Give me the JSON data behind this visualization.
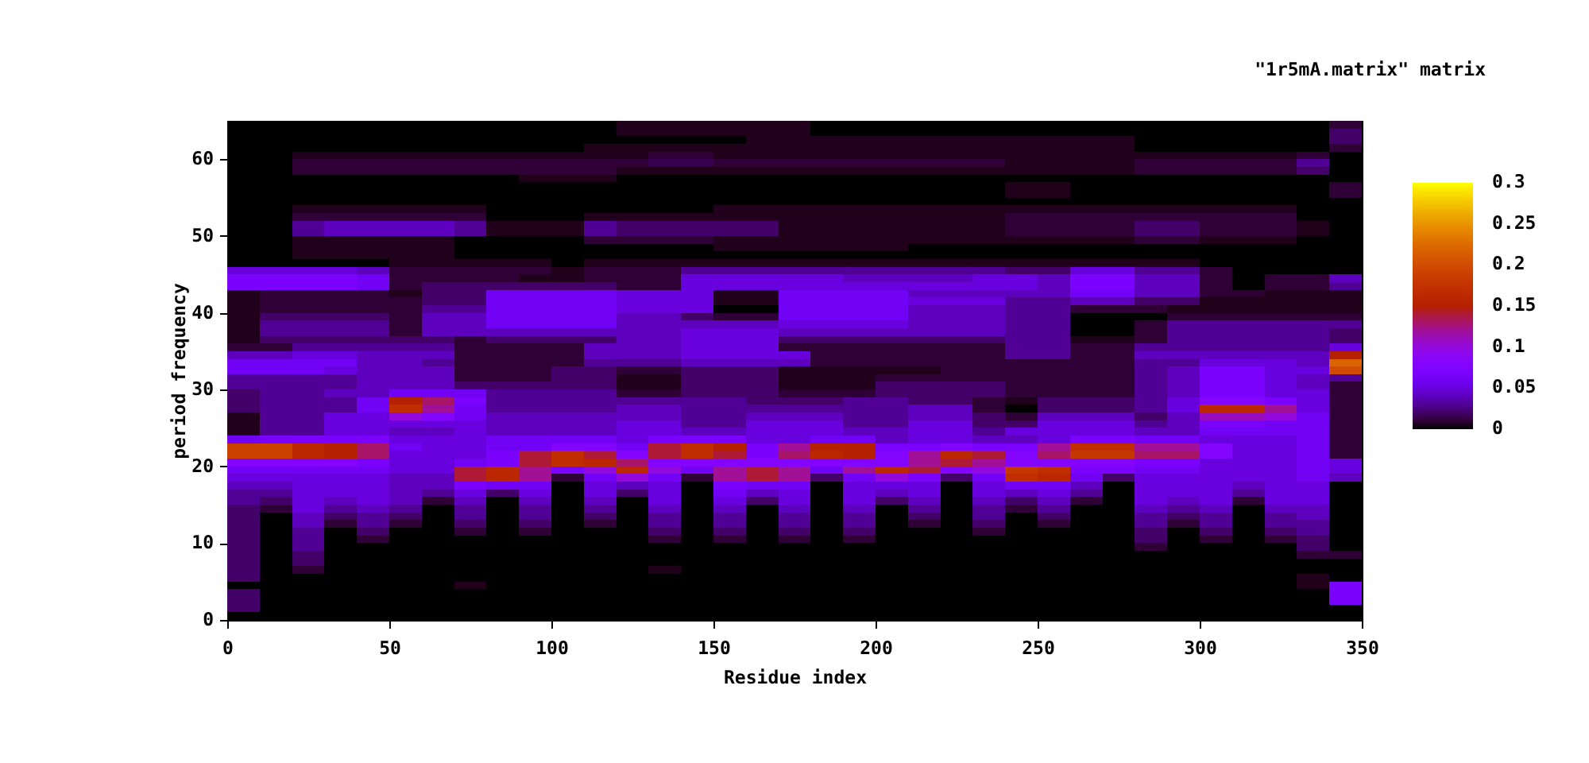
{
  "chart_data": {
    "type": "heatmap",
    "annotations": [
      "\"1r5mA.matrix\" matrix"
    ],
    "xlabel": "Residue index",
    "ylabel": "period frequency",
    "xlim": [
      0,
      350
    ],
    "xticks": [
      0,
      50,
      100,
      150,
      200,
      250,
      300,
      350
    ],
    "ylim": [
      0,
      65
    ],
    "yticks": [
      0,
      10,
      20,
      30,
      40,
      50,
      60
    ],
    "clim": [
      0,
      0.3
    ],
    "cticks": [
      0,
      0.05,
      0.1,
      0.15,
      0.2,
      0.25,
      0.3
    ],
    "cells": [
      [
        0,
        0,
        0,
        0,
        0,
        0,
        0,
        0,
        0,
        0,
        0,
        0,
        0.005,
        0.005,
        0.005,
        0.005,
        0.005,
        0.005,
        0,
        0,
        0,
        0,
        0,
        0,
        0,
        0,
        0,
        0,
        0,
        0,
        0,
        0,
        0,
        0,
        0.01
      ],
      [
        0,
        0,
        0,
        0,
        0,
        0,
        0,
        0,
        0,
        0,
        0,
        0,
        0.005,
        0.005,
        0.005,
        0.005,
        0.005,
        0.005,
        0,
        0,
        0,
        0,
        0,
        0,
        0,
        0,
        0,
        0,
        0,
        0,
        0,
        0,
        0,
        0,
        0.02
      ],
      [
        0,
        0,
        0,
        0,
        0,
        0,
        0,
        0,
        0,
        0,
        0,
        0,
        0,
        0,
        0,
        0,
        0.005,
        0.005,
        0.005,
        0.005,
        0.005,
        0.005,
        0.005,
        0.005,
        0.005,
        0.005,
        0.005,
        0.005,
        0,
        0,
        0,
        0,
        0,
        0,
        0.02
      ],
      [
        0,
        0,
        0,
        0,
        0,
        0,
        0,
        0,
        0,
        0,
        0,
        0.005,
        0.005,
        0.005,
        0.005,
        0.005,
        0.005,
        0.005,
        0.005,
        0.005,
        0.005,
        0.005,
        0.005,
        0.005,
        0.005,
        0.005,
        0.005,
        0.005,
        0,
        0,
        0,
        0,
        0,
        0,
        0.01
      ],
      [
        0,
        0,
        0.005,
        0.005,
        0.005,
        0.005,
        0.005,
        0.005,
        0.005,
        0.005,
        0.005,
        0.005,
        0.005,
        0.01,
        0.01,
        0.005,
        0.005,
        0.005,
        0.005,
        0.005,
        0.005,
        0.005,
        0.005,
        0.005,
        0.005,
        0.005,
        0.005,
        0.005,
        0.005,
        0.005,
        0.005,
        0.005,
        0.005,
        0.01,
        0
      ],
      [
        0,
        0,
        0.01,
        0.01,
        0.01,
        0.01,
        0.01,
        0.01,
        0.01,
        0.01,
        0.01,
        0.01,
        0.01,
        0.015,
        0.015,
        0.01,
        0.01,
        0.01,
        0.01,
        0.01,
        0.01,
        0.01,
        0.01,
        0.01,
        0.005,
        0.005,
        0.005,
        0.005,
        0.01,
        0.01,
        0.01,
        0.01,
        0.01,
        0.03,
        0
      ],
      [
        0,
        0,
        0.01,
        0.01,
        0.01,
        0.01,
        0.01,
        0.01,
        0.01,
        0.01,
        0.01,
        0.01,
        0.005,
        0.005,
        0.005,
        0.005,
        0.005,
        0.005,
        0.005,
        0.005,
        0.005,
        0.005,
        0.005,
        0.005,
        0.005,
        0.005,
        0.005,
        0.005,
        0.01,
        0.01,
        0.01,
        0.01,
        0.01,
        0.02,
        0
      ],
      [
        0,
        0,
        0,
        0,
        0,
        0,
        0,
        0,
        0,
        0.005,
        0.005,
        0.005,
        0,
        0,
        0,
        0,
        0,
        0,
        0,
        0,
        0,
        0,
        0,
        0,
        0,
        0,
        0,
        0,
        0,
        0,
        0,
        0,
        0,
        0,
        0
      ],
      [
        0,
        0,
        0,
        0,
        0,
        0,
        0,
        0,
        0,
        0,
        0,
        0,
        0,
        0,
        0,
        0,
        0,
        0,
        0,
        0,
        0,
        0,
        0,
        0,
        0.005,
        0.005,
        0,
        0,
        0,
        0,
        0,
        0,
        0,
        0,
        0.01
      ],
      [
        0,
        0,
        0,
        0,
        0,
        0,
        0,
        0,
        0,
        0,
        0,
        0,
        0,
        0,
        0,
        0,
        0,
        0,
        0,
        0,
        0,
        0,
        0,
        0,
        0.005,
        0.005,
        0,
        0,
        0,
        0,
        0,
        0,
        0,
        0,
        0.01
      ],
      [
        0,
        0,
        0,
        0,
        0,
        0,
        0,
        0,
        0,
        0,
        0,
        0,
        0,
        0,
        0,
        0,
        0,
        0,
        0,
        0,
        0,
        0,
        0,
        0,
        0,
        0,
        0,
        0,
        0,
        0,
        0,
        0,
        0,
        0,
        0
      ],
      [
        0,
        0,
        0.005,
        0.005,
        0.005,
        0.005,
        0.005,
        0.005,
        0,
        0,
        0,
        0,
        0,
        0,
        0,
        0.005,
        0.005,
        0.005,
        0.005,
        0.005,
        0.005,
        0.005,
        0.005,
        0.005,
        0.005,
        0.005,
        0.005,
        0.005,
        0.005,
        0.005,
        0.005,
        0.005,
        0.005,
        0,
        0
      ],
      [
        0,
        0,
        0.01,
        0.01,
        0.01,
        0.01,
        0.01,
        0.01,
        0,
        0,
        0,
        0.005,
        0.005,
        0.005,
        0.005,
        0.005,
        0.005,
        0.005,
        0.005,
        0.005,
        0.005,
        0.005,
        0.005,
        0.005,
        0.01,
        0.01,
        0.01,
        0.01,
        0.01,
        0.01,
        0.01,
        0.01,
        0.01,
        0,
        0
      ],
      [
        0,
        0,
        0.03,
        0.04,
        0.04,
        0.04,
        0.04,
        0.03,
        0.005,
        0.005,
        0.005,
        0.03,
        0.02,
        0.02,
        0.02,
        0.02,
        0.02,
        0.005,
        0.005,
        0.005,
        0.005,
        0.005,
        0.005,
        0.005,
        0.01,
        0.01,
        0.01,
        0.01,
        0.02,
        0.02,
        0.01,
        0.01,
        0.01,
        0.005,
        0
      ],
      [
        0,
        0,
        0.03,
        0.04,
        0.04,
        0.04,
        0.04,
        0.03,
        0.005,
        0.005,
        0.005,
        0.03,
        0.02,
        0.02,
        0.02,
        0.02,
        0.02,
        0.005,
        0.005,
        0.005,
        0.005,
        0.005,
        0.005,
        0.005,
        0.01,
        0.01,
        0.01,
        0.01,
        0.02,
        0.02,
        0.01,
        0.01,
        0.01,
        0.005,
        0
      ],
      [
        0,
        0,
        0.005,
        0.005,
        0.005,
        0.005,
        0.005,
        0,
        0,
        0,
        0,
        0.01,
        0.01,
        0.01,
        0.01,
        0.005,
        0.005,
        0.005,
        0.005,
        0.005,
        0.005,
        0.005,
        0.005,
        0.005,
        0.005,
        0.005,
        0.005,
        0.005,
        0.01,
        0.01,
        0.005,
        0.005,
        0.005,
        0,
        0
      ],
      [
        0,
        0,
        0.005,
        0.005,
        0.005,
        0.005,
        0.005,
        0,
        0,
        0,
        0,
        0,
        0,
        0,
        0,
        0.005,
        0.005,
        0.005,
        0.005,
        0.005,
        0.005,
        0,
        0,
        0,
        0,
        0,
        0,
        0,
        0,
        0,
        0,
        0,
        0,
        0,
        0
      ],
      [
        0,
        0,
        0.005,
        0.005,
        0.005,
        0.005,
        0.005,
        0,
        0,
        0,
        0,
        0,
        0,
        0,
        0,
        0,
        0,
        0,
        0,
        0,
        0,
        0,
        0,
        0,
        0,
        0,
        0,
        0,
        0,
        0,
        0,
        0,
        0,
        0,
        0
      ],
      [
        0,
        0,
        0,
        0,
        0,
        0.005,
        0.005,
        0.005,
        0.005,
        0.005,
        0,
        0.005,
        0.005,
        0.005,
        0.005,
        0.005,
        0.005,
        0.005,
        0.005,
        0.005,
        0.005,
        0.005,
        0.005,
        0.005,
        0.005,
        0.005,
        0.005,
        0.005,
        0.005,
        0.005,
        0,
        0,
        0,
        0,
        0
      ],
      [
        0.05,
        0.05,
        0.05,
        0.05,
        0.04,
        0.01,
        0.01,
        0.01,
        0.01,
        0.01,
        0.005,
        0.01,
        0.01,
        0.01,
        0.03,
        0.03,
        0.03,
        0.03,
        0.03,
        0.03,
        0.03,
        0.03,
        0.03,
        0.03,
        0.02,
        0.02,
        0.05,
        0.05,
        0.03,
        0.03,
        0.01,
        0,
        0,
        0,
        0
      ],
      [
        0.07,
        0.07,
        0.07,
        0.07,
        0.06,
        0.01,
        0.01,
        0.01,
        0.01,
        0.005,
        0.005,
        0.01,
        0.01,
        0.01,
        0.05,
        0.05,
        0.05,
        0.05,
        0.05,
        0.04,
        0.04,
        0.04,
        0.04,
        0.05,
        0.05,
        0.04,
        0.07,
        0.07,
        0.04,
        0.04,
        0.01,
        0,
        0.01,
        0.01,
        0.04
      ],
      [
        0.07,
        0.07,
        0.07,
        0.07,
        0.06,
        0.01,
        0.02,
        0.02,
        0.02,
        0.02,
        0.02,
        0.02,
        0.01,
        0.01,
        0.05,
        0.05,
        0.05,
        0.05,
        0.05,
        0.05,
        0.05,
        0.05,
        0.05,
        0.05,
        0.05,
        0.04,
        0.07,
        0.07,
        0.04,
        0.04,
        0.01,
        0,
        0.01,
        0.01,
        0.03
      ],
      [
        0.005,
        0.01,
        0.01,
        0.01,
        0.01,
        0.005,
        0.02,
        0.02,
        0.06,
        0.06,
        0.06,
        0.06,
        0.05,
        0.05,
        0.05,
        0.005,
        0.005,
        0.06,
        0.06,
        0.06,
        0.06,
        0.04,
        0.04,
        0.04,
        0.04,
        0.04,
        0.06,
        0.06,
        0.04,
        0.04,
        0.01,
        0.01,
        0.005,
        0.005,
        0.005
      ],
      [
        0.005,
        0.01,
        0.01,
        0.01,
        0.01,
        0.01,
        0.02,
        0.02,
        0.06,
        0.06,
        0.06,
        0.06,
        0.05,
        0.05,
        0.05,
        0.005,
        0.005,
        0.06,
        0.06,
        0.06,
        0.06,
        0.05,
        0.05,
        0.05,
        0.03,
        0.03,
        0.04,
        0.04,
        0.02,
        0.02,
        0.005,
        0.005,
        0.005,
        0.005,
        0.005
      ],
      [
        0.005,
        0.01,
        0.01,
        0.01,
        0.01,
        0.01,
        0.03,
        0.03,
        0.06,
        0.06,
        0.06,
        0.06,
        0.05,
        0.05,
        0.05,
        0,
        0,
        0.06,
        0.06,
        0.06,
        0.06,
        0.04,
        0.04,
        0.04,
        0.03,
        0.03,
        0.01,
        0.01,
        0.01,
        0.005,
        0.005,
        0.005,
        0.005,
        0.005,
        0.005
      ],
      [
        0.005,
        0.02,
        0.02,
        0.02,
        0.02,
        0.01,
        0.04,
        0.04,
        0.06,
        0.06,
        0.06,
        0.06,
        0.04,
        0.04,
        0.02,
        0.01,
        0.01,
        0.06,
        0.06,
        0.06,
        0.06,
        0.04,
        0.04,
        0.04,
        0.03,
        0.03,
        0,
        0,
        0,
        0.01,
        0.01,
        0.01,
        0.01,
        0.01,
        0.01
      ],
      [
        0.005,
        0.03,
        0.03,
        0.03,
        0.03,
        0.01,
        0.04,
        0.04,
        0.06,
        0.06,
        0.06,
        0.06,
        0.04,
        0.04,
        0.04,
        0.04,
        0.04,
        0.05,
        0.05,
        0.05,
        0.05,
        0.04,
        0.04,
        0.04,
        0.03,
        0.03,
        0,
        0,
        0.01,
        0.03,
        0.03,
        0.03,
        0.03,
        0.03,
        0.03
      ],
      [
        0.005,
        0.03,
        0.03,
        0.03,
        0.03,
        0.01,
        0.04,
        0.04,
        0.04,
        0.04,
        0.04,
        0.04,
        0.04,
        0.04,
        0.05,
        0.05,
        0.05,
        0.04,
        0.04,
        0.04,
        0.04,
        0.04,
        0.04,
        0.04,
        0.03,
        0.03,
        0,
        0,
        0.01,
        0.03,
        0.03,
        0.03,
        0.03,
        0.03,
        0.02
      ],
      [
        0.005,
        0.02,
        0.02,
        0.02,
        0.02,
        0.02,
        0.02,
        0.01,
        0.02,
        0.02,
        0.02,
        0.02,
        0.04,
        0.04,
        0.05,
        0.05,
        0.05,
        0.02,
        0.02,
        0.02,
        0.02,
        0.02,
        0.02,
        0.02,
        0.03,
        0.03,
        0.005,
        0.005,
        0.01,
        0.03,
        0.03,
        0.03,
        0.03,
        0.03,
        0.02
      ],
      [
        0.01,
        0.01,
        0.03,
        0.03,
        0.03,
        0.03,
        0.03,
        0.01,
        0.01,
        0.01,
        0.01,
        0.04,
        0.04,
        0.04,
        0.05,
        0.05,
        0.05,
        0.01,
        0.01,
        0.01,
        0.01,
        0.01,
        0.01,
        0.01,
        0.03,
        0.03,
        0.01,
        0.01,
        0.03,
        0.03,
        0.03,
        0.03,
        0.03,
        0.03,
        0.05
      ],
      [
        0.04,
        0.04,
        0.05,
        0.05,
        0.04,
        0.04,
        0.04,
        0.01,
        0.01,
        0.01,
        0.01,
        0.04,
        0.04,
        0.04,
        0.05,
        0.05,
        0.05,
        0.05,
        0.01,
        0.01,
        0.01,
        0.01,
        0.01,
        0.01,
        0.03,
        0.03,
        0.01,
        0.01,
        0.04,
        0.04,
        0.04,
        0.04,
        0.04,
        0.04,
        0.15
      ],
      [
        0.06,
        0.06,
        0.06,
        0.06,
        0.04,
        0.04,
        0.03,
        0.01,
        0.01,
        0.01,
        0.01,
        0.03,
        0.03,
        0.03,
        0.04,
        0.04,
        0.04,
        0.04,
        0.01,
        0.01,
        0.01,
        0.01,
        0.01,
        0.01,
        0.01,
        0.01,
        0.01,
        0.01,
        0.03,
        0.03,
        0.05,
        0.05,
        0.05,
        0.04,
        0.22
      ],
      [
        0.06,
        0.06,
        0.06,
        0.05,
        0.04,
        0.04,
        0.04,
        0.01,
        0.01,
        0.01,
        0.02,
        0.02,
        0.01,
        0.01,
        0.02,
        0.02,
        0.02,
        0.005,
        0.005,
        0.005,
        0.005,
        0.005,
        0.01,
        0.01,
        0.01,
        0.01,
        0.01,
        0.01,
        0.03,
        0.04,
        0.07,
        0.07,
        0.05,
        0.05,
        0.2
      ],
      [
        0.03,
        0.03,
        0.03,
        0.03,
        0.04,
        0.04,
        0.04,
        0.01,
        0.01,
        0.01,
        0.02,
        0.02,
        0.005,
        0.005,
        0.02,
        0.02,
        0.02,
        0.005,
        0.005,
        0.005,
        0.01,
        0.01,
        0.01,
        0.01,
        0.01,
        0.01,
        0.01,
        0.01,
        0.03,
        0.04,
        0.07,
        0.07,
        0.05,
        0.04,
        0.03
      ],
      [
        0.03,
        0.03,
        0.03,
        0.03,
        0.04,
        0.04,
        0.04,
        0.02,
        0.02,
        0.02,
        0.02,
        0.02,
        0.005,
        0.005,
        0.02,
        0.02,
        0.02,
        0.005,
        0.005,
        0.005,
        0.02,
        0.02,
        0.02,
        0.02,
        0.01,
        0.01,
        0.01,
        0.01,
        0.03,
        0.04,
        0.07,
        0.07,
        0.05,
        0.04,
        0.01
      ],
      [
        0.02,
        0.03,
        0.03,
        0.04,
        0.04,
        0.06,
        0.06,
        0.06,
        0.03,
        0.03,
        0.03,
        0.03,
        0.01,
        0.01,
        0.02,
        0.02,
        0.02,
        0.01,
        0.01,
        0.01,
        0.02,
        0.02,
        0.02,
        0.02,
        0.01,
        0.01,
        0.01,
        0.01,
        0.03,
        0.04,
        0.07,
        0.07,
        0.05,
        0.05,
        0.01
      ],
      [
        0.02,
        0.03,
        0.03,
        0.03,
        0.06,
        0.15,
        0.13,
        0.07,
        0.03,
        0.03,
        0.03,
        0.03,
        0.03,
        0.03,
        0.03,
        0.03,
        0.02,
        0.02,
        0.02,
        0.03,
        0.03,
        0.02,
        0.02,
        0.01,
        0.005,
        0.02,
        0.02,
        0.02,
        0.03,
        0.05,
        0.08,
        0.08,
        0.07,
        0.05,
        0.01
      ],
      [
        0.02,
        0.03,
        0.03,
        0.03,
        0.06,
        0.17,
        0.12,
        0.06,
        0.03,
        0.03,
        0.03,
        0.03,
        0.04,
        0.04,
        0.03,
        0.03,
        0.03,
        0.03,
        0.03,
        0.03,
        0.03,
        0.04,
        0.04,
        0.01,
        0,
        0.02,
        0.02,
        0.02,
        0.03,
        0.05,
        0.16,
        0.16,
        0.12,
        0.05,
        0.01
      ],
      [
        0.005,
        0.03,
        0.03,
        0.05,
        0.05,
        0.1,
        0.08,
        0.06,
        0.04,
        0.04,
        0.04,
        0.04,
        0.04,
        0.04,
        0.03,
        0.03,
        0.04,
        0.04,
        0.04,
        0.03,
        0.03,
        0.04,
        0.04,
        0.02,
        0.01,
        0.04,
        0.04,
        0.04,
        0.02,
        0.04,
        0.11,
        0.11,
        0.1,
        0.06,
        0.01
      ],
      [
        0.005,
        0.03,
        0.03,
        0.05,
        0.05,
        0.05,
        0.05,
        0.05,
        0.04,
        0.04,
        0.04,
        0.04,
        0.05,
        0.05,
        0.03,
        0.03,
        0.05,
        0.05,
        0.05,
        0.03,
        0.03,
        0.05,
        0.05,
        0.02,
        0.02,
        0.05,
        0.05,
        0.05,
        0.03,
        0.04,
        0.07,
        0.07,
        0.06,
        0.06,
        0.01
      ],
      [
        0.005,
        0.03,
        0.03,
        0.05,
        0.05,
        0.04,
        0.04,
        0.05,
        0.04,
        0.04,
        0.04,
        0.04,
        0.05,
        0.05,
        0.04,
        0.04,
        0.05,
        0.05,
        0.05,
        0.04,
        0.04,
        0.05,
        0.05,
        0.03,
        0.05,
        0.05,
        0.05,
        0.05,
        0.04,
        0.04,
        0.06,
        0.06,
        0.06,
        0.06,
        0.01
      ],
      [
        0.06,
        0.07,
        0.07,
        0.07,
        0.07,
        0.05,
        0.05,
        0.05,
        0.06,
        0.06,
        0.06,
        0.06,
        0.05,
        0.07,
        0.07,
        0.07,
        0.05,
        0.05,
        0.06,
        0.06,
        0.04,
        0.05,
        0.05,
        0.04,
        0.04,
        0.05,
        0.07,
        0.07,
        0.06,
        0.06,
        0.05,
        0.05,
        0.05,
        0.06,
        0.01
      ],
      [
        0.19,
        0.19,
        0.16,
        0.15,
        0.13,
        0.06,
        0.05,
        0.05,
        0.06,
        0.06,
        0.08,
        0.08,
        0.06,
        0.14,
        0.17,
        0.15,
        0.07,
        0.12,
        0.15,
        0.15,
        0.07,
        0.07,
        0.08,
        0.07,
        0.07,
        0.12,
        0.17,
        0.17,
        0.12,
        0.12,
        0.08,
        0.05,
        0.05,
        0.06,
        0.01
      ],
      [
        0.19,
        0.19,
        0.16,
        0.15,
        0.13,
        0.05,
        0.05,
        0.05,
        0.07,
        0.14,
        0.17,
        0.14,
        0.08,
        0.14,
        0.17,
        0.14,
        0.07,
        0.13,
        0.16,
        0.15,
        0.08,
        0.12,
        0.16,
        0.14,
        0.08,
        0.13,
        0.18,
        0.18,
        0.13,
        0.13,
        0.08,
        0.05,
        0.05,
        0.06,
        0.01
      ],
      [
        0.08,
        0.08,
        0.08,
        0.08,
        0.07,
        0.05,
        0.05,
        0.06,
        0.07,
        0.14,
        0.17,
        0.16,
        0.13,
        0.08,
        0.08,
        0.08,
        0.08,
        0.08,
        0.08,
        0.08,
        0.08,
        0.12,
        0.14,
        0.12,
        0.08,
        0.08,
        0.08,
        0.08,
        0.07,
        0.07,
        0.05,
        0.05,
        0.05,
        0.06,
        0.05
      ],
      [
        0.06,
        0.06,
        0.06,
        0.06,
        0.06,
        0.05,
        0.05,
        0.14,
        0.16,
        0.12,
        0.07,
        0.1,
        0.16,
        0.1,
        0.06,
        0.12,
        0.14,
        0.12,
        0.06,
        0.12,
        0.16,
        0.14,
        0.08,
        0.1,
        0.18,
        0.17,
        0.07,
        0.07,
        0.06,
        0.06,
        0.05,
        0.05,
        0.05,
        0.06,
        0.05
      ],
      [
        0.05,
        0.05,
        0.05,
        0.05,
        0.05,
        0.04,
        0.04,
        0.14,
        0.16,
        0.12,
        0.01,
        0.06,
        0.1,
        0.06,
        0.01,
        0.12,
        0.14,
        0.12,
        0.02,
        0.06,
        0.1,
        0.07,
        0.02,
        0.06,
        0.17,
        0.16,
        0.06,
        0.02,
        0.05,
        0.05,
        0.05,
        0.05,
        0.05,
        0.06,
        0.04
      ],
      [
        0.04,
        0.04,
        0.05,
        0.05,
        0.05,
        0.04,
        0.04,
        0.07,
        0.06,
        0.06,
        0,
        0.05,
        0.04,
        0.05,
        0,
        0.07,
        0.06,
        0.06,
        0,
        0.05,
        0.05,
        0.05,
        0,
        0.05,
        0.06,
        0.06,
        0.04,
        0,
        0.05,
        0.05,
        0.05,
        0.04,
        0.05,
        0.05,
        0
      ],
      [
        0.03,
        0.03,
        0.05,
        0.05,
        0.05,
        0.04,
        0.03,
        0.05,
        0.02,
        0.05,
        0,
        0.05,
        0.02,
        0.05,
        0,
        0.06,
        0.04,
        0.05,
        0,
        0.05,
        0.04,
        0.05,
        0,
        0.05,
        0.04,
        0.05,
        0.03,
        0,
        0.05,
        0.05,
        0.05,
        0.03,
        0.05,
        0.05,
        0
      ],
      [
        0.03,
        0.02,
        0.05,
        0.04,
        0.05,
        0.04,
        0.01,
        0.04,
        0,
        0.04,
        0,
        0.04,
        0,
        0.05,
        0,
        0.05,
        0.02,
        0.05,
        0,
        0.05,
        0.02,
        0.04,
        0,
        0.04,
        0.02,
        0.04,
        0.01,
        0,
        0.05,
        0.04,
        0.05,
        0.01,
        0.05,
        0.05,
        0
      ],
      [
        0.02,
        0.01,
        0.05,
        0.03,
        0.04,
        0.03,
        0,
        0.03,
        0,
        0.03,
        0,
        0.03,
        0,
        0.04,
        0,
        0.04,
        0,
        0.04,
        0,
        0.04,
        0,
        0.03,
        0,
        0.03,
        0.01,
        0.03,
        0,
        0,
        0.04,
        0.03,
        0.04,
        0,
        0.04,
        0.04,
        0
      ],
      [
        0.02,
        0,
        0.04,
        0.02,
        0.03,
        0.02,
        0,
        0.03,
        0,
        0.03,
        0,
        0.02,
        0,
        0.03,
        0,
        0.03,
        0,
        0.03,
        0,
        0.03,
        0,
        0.02,
        0,
        0.03,
        0,
        0.02,
        0,
        0,
        0.03,
        0.02,
        0.03,
        0,
        0.03,
        0.04,
        0
      ],
      [
        0.02,
        0,
        0.04,
        0.01,
        0.03,
        0.01,
        0,
        0.02,
        0,
        0.02,
        0,
        0.01,
        0,
        0.03,
        0,
        0.03,
        0,
        0.03,
        0,
        0.03,
        0,
        0.01,
        0,
        0.02,
        0,
        0.01,
        0,
        0,
        0.03,
        0.01,
        0.03,
        0,
        0.03,
        0.03,
        0
      ],
      [
        0.02,
        0,
        0.03,
        0,
        0.02,
        0,
        0,
        0.01,
        0,
        0.01,
        0,
        0,
        0,
        0.02,
        0,
        0.02,
        0,
        0.02,
        0,
        0.02,
        0,
        0,
        0,
        0.01,
        0,
        0,
        0,
        0,
        0.02,
        0,
        0.02,
        0,
        0.02,
        0.03,
        0
      ],
      [
        0.02,
        0,
        0.03,
        0,
        0.01,
        0,
        0,
        0,
        0,
        0,
        0,
        0,
        0,
        0.01,
        0,
        0.01,
        0,
        0.01,
        0,
        0.01,
        0,
        0,
        0,
        0,
        0,
        0,
        0,
        0,
        0.02,
        0,
        0.01,
        0,
        0.01,
        0.02,
        0
      ],
      [
        0.02,
        0,
        0.03,
        0,
        0,
        0,
        0,
        0,
        0,
        0,
        0,
        0,
        0,
        0,
        0,
        0,
        0,
        0,
        0,
        0,
        0,
        0,
        0,
        0,
        0,
        0,
        0,
        0,
        0.01,
        0,
        0,
        0,
        0,
        0.02,
        0
      ],
      [
        0.02,
        0,
        0.02,
        0,
        0,
        0,
        0,
        0,
        0,
        0,
        0,
        0,
        0,
        0,
        0,
        0,
        0,
        0,
        0,
        0,
        0,
        0,
        0,
        0,
        0,
        0,
        0,
        0,
        0,
        0,
        0,
        0,
        0,
        0.01,
        0.01
      ],
      [
        0.02,
        0,
        0.02,
        0,
        0,
        0,
        0,
        0,
        0,
        0,
        0,
        0,
        0,
        0,
        0,
        0,
        0,
        0,
        0,
        0,
        0,
        0,
        0,
        0,
        0,
        0,
        0,
        0,
        0,
        0,
        0,
        0,
        0,
        0,
        0
      ],
      [
        0.02,
        0,
        0.01,
        0,
        0,
        0,
        0,
        0,
        0,
        0,
        0,
        0,
        0,
        0.005,
        0,
        0,
        0,
        0,
        0,
        0,
        0,
        0,
        0,
        0,
        0,
        0,
        0,
        0,
        0,
        0,
        0,
        0,
        0,
        0,
        0
      ],
      [
        0.02,
        0,
        0,
        0,
        0,
        0,
        0,
        0,
        0,
        0,
        0,
        0,
        0,
        0,
        0,
        0,
        0,
        0,
        0,
        0,
        0,
        0,
        0,
        0,
        0,
        0,
        0,
        0,
        0,
        0,
        0,
        0,
        0,
        0.005,
        0
      ],
      [
        0,
        0,
        0,
        0,
        0,
        0,
        0,
        0.005,
        0,
        0,
        0,
        0,
        0,
        0,
        0,
        0,
        0,
        0,
        0,
        0,
        0,
        0,
        0,
        0,
        0,
        0,
        0,
        0,
        0,
        0,
        0,
        0,
        0,
        0.005,
        0.07
      ],
      [
        0.02,
        0,
        0,
        0,
        0,
        0,
        0,
        0,
        0,
        0,
        0,
        0,
        0,
        0,
        0,
        0,
        0,
        0,
        0,
        0,
        0,
        0,
        0,
        0,
        0,
        0,
        0,
        0,
        0,
        0,
        0,
        0,
        0,
        0,
        0.07
      ],
      [
        0.02,
        0,
        0,
        0,
        0,
        0,
        0,
        0,
        0,
        0,
        0,
        0,
        0,
        0,
        0,
        0,
        0,
        0,
        0,
        0,
        0,
        0,
        0,
        0,
        0,
        0,
        0,
        0,
        0,
        0,
        0,
        0,
        0,
        0,
        0.07
      ],
      [
        0.02,
        0,
        0,
        0,
        0,
        0,
        0,
        0,
        0,
        0,
        0,
        0,
        0,
        0,
        0,
        0,
        0,
        0,
        0,
        0,
        0,
        0,
        0,
        0,
        0,
        0,
        0,
        0,
        0,
        0,
        0,
        0,
        0,
        0,
        0
      ],
      [
        0,
        0,
        0,
        0,
        0,
        0,
        0,
        0,
        0,
        0,
        0,
        0,
        0,
        0,
        0,
        0,
        0,
        0,
        0,
        0,
        0,
        0,
        0,
        0,
        0,
        0,
        0,
        0,
        0,
        0,
        0,
        0,
        0,
        0,
        0
      ]
    ]
  }
}
